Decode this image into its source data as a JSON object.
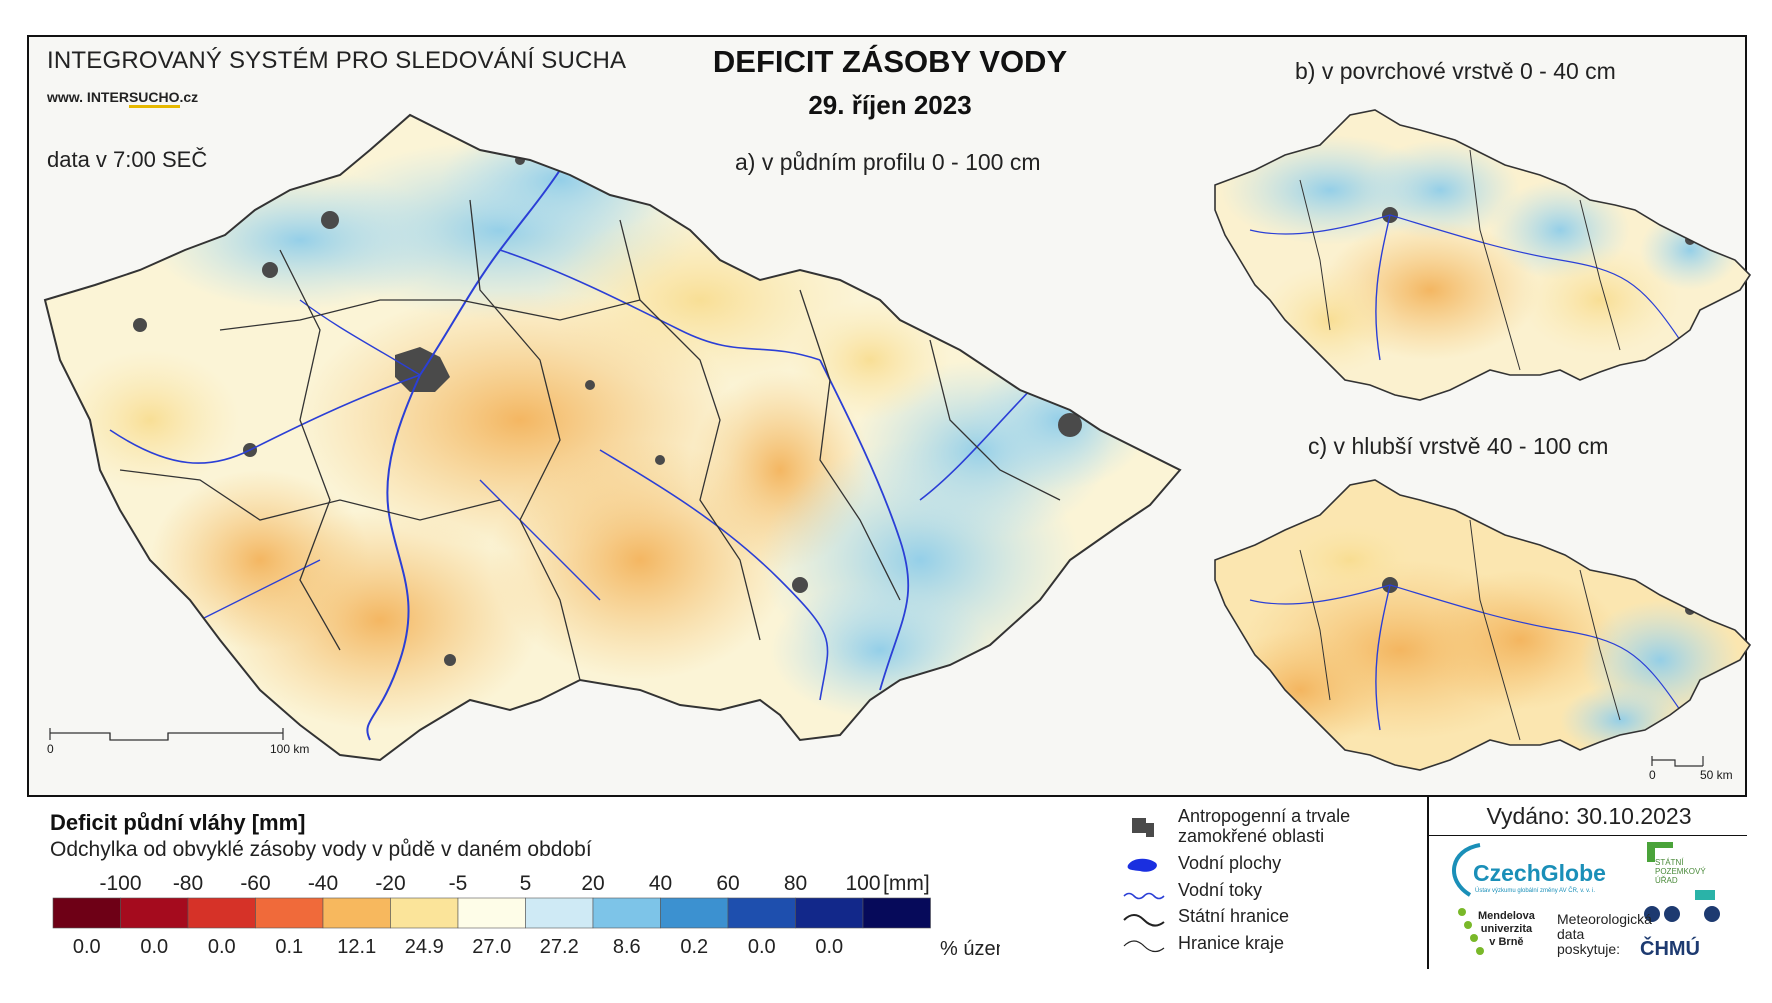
{
  "header": {
    "system_title": "INTEGROVANÝ SYSTÉM PRO SLEDOVÁNÍ SUCHA",
    "website_prefix": "www. INTER",
    "website_highlight": "SUCHO",
    "website_suffix": ".cz",
    "data_time": "data v 7:00 SEČ",
    "main_title": "DEFICIT ZÁSOBY VODY",
    "main_date": "29. říjen 2023"
  },
  "maps": {
    "a_label": "a) v půdním profilu 0 - 100 cm",
    "b_label": "b) v povrchové vrstvě 0 - 40 cm",
    "c_label": "c) v hlubší vrstvě 40 - 100 cm",
    "scale_main_start": "0",
    "scale_main_end": "100 km",
    "scale_small_start": "0",
    "scale_small_end": "50 km"
  },
  "legend": {
    "title": "Deficit půdní vláhy  [mm]",
    "subtitle": "Odchylka od obvyklé zásoby vody v půdě v daném období",
    "thresholds": [
      "-100",
      "-80",
      "-60",
      "-40",
      "-20",
      "-5",
      "5",
      "20",
      "40",
      "60",
      "80",
      "100"
    ],
    "unit": "[mm]",
    "colors": [
      "#6e0016",
      "#a50b1e",
      "#d63228",
      "#f06a3a",
      "#f7b85e",
      "#fbe49a",
      "#fefde8",
      "#cfeaf5",
      "#7dc4e8",
      "#3c91d0",
      "#1e4fae",
      "#12288a",
      "#060a5a"
    ],
    "percents": [
      "0.0",
      "0.0",
      "0.0",
      "0.1",
      "12.1",
      "24.9",
      "27.0",
      "27.2",
      "8.6",
      "0.2",
      "0.0",
      "0.0"
    ],
    "percent_unit": "% území",
    "symbols": [
      {
        "label": "Antropogenní a trvale",
        "label2": "zamokřené oblasti",
        "icon": "urban-area-icon"
      },
      {
        "label": "Vodní plochy",
        "icon": "water-body-icon"
      },
      {
        "label": "Vodní toky",
        "icon": "river-icon"
      },
      {
        "label": "Státní hranice",
        "icon": "state-border-icon"
      },
      {
        "label": "Hranice kraje",
        "icon": "region-border-icon"
      }
    ]
  },
  "footer": {
    "issued": "Vydáno: 30.10.2023",
    "czechglobe": "CzechGlobe",
    "czechglobe_sub": "Ústav výzkumu globální změny AV ČR, v. v. i.",
    "spu_1": "STÁTNÍ",
    "spu_2": "POZEMKOVÝ",
    "spu_3": "ÚŘAD",
    "mendel_1": "Mendelova",
    "mendel_2": "univerzita",
    "mendel_3": "v Brně",
    "met_1": "Meteorologická",
    "met_2": "data",
    "met_3": "poskytuje:",
    "chmu": "ČHMÚ"
  }
}
